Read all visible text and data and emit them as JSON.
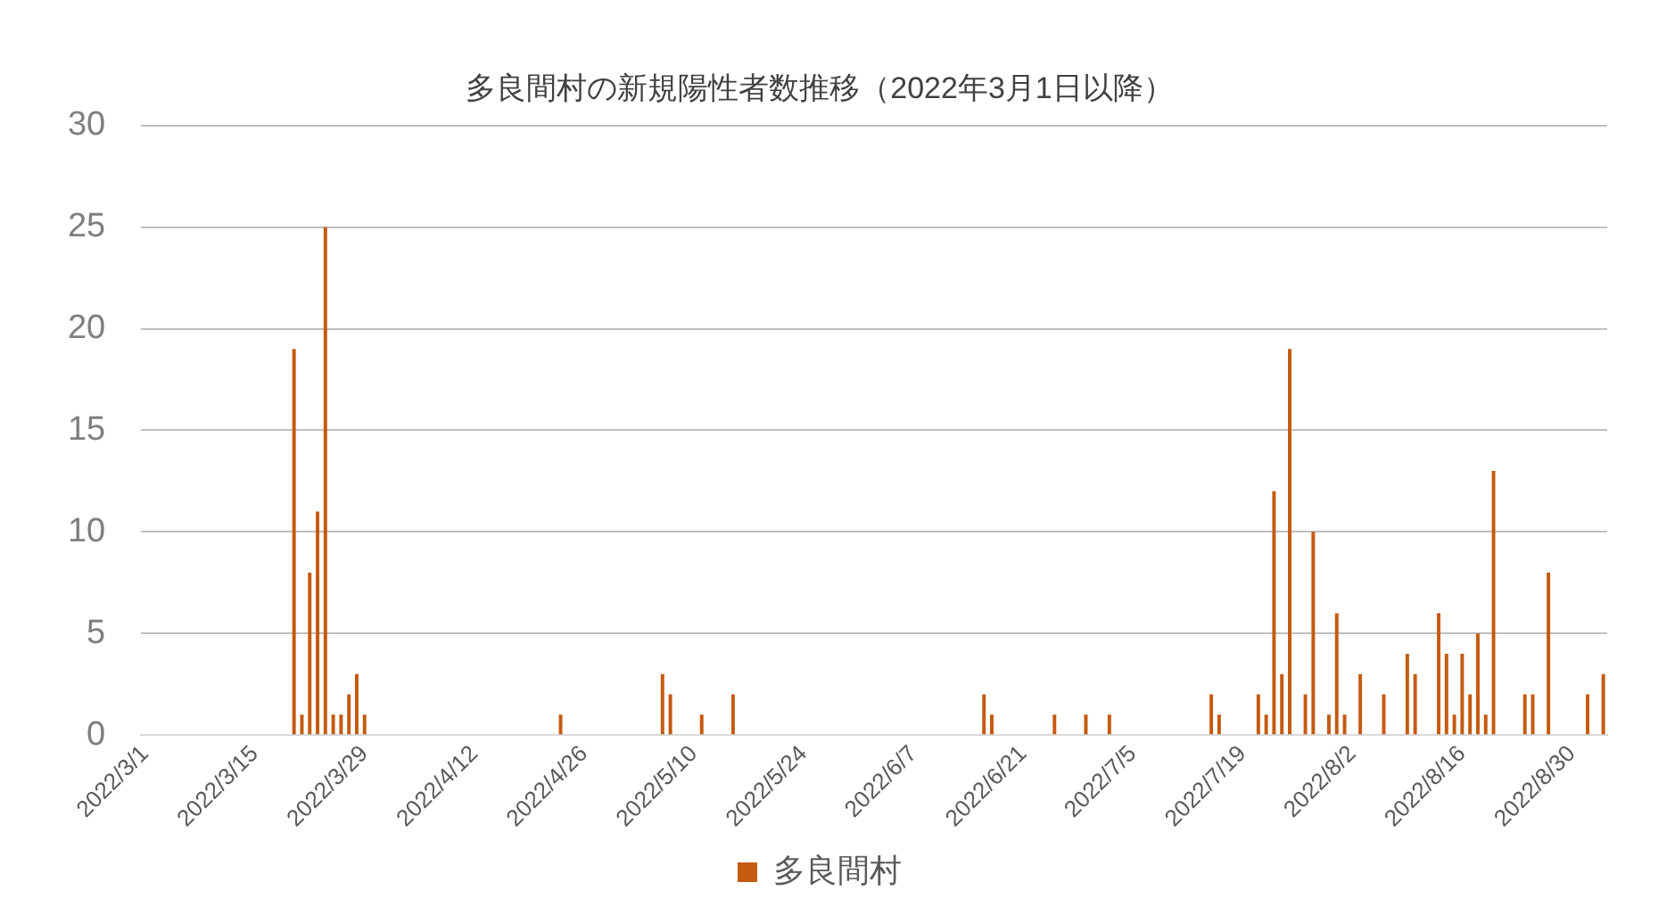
{
  "chart_data": {
    "type": "bar",
    "title": "多良間村の新規陽性者数推移（2022年3月1日以降）",
    "categories": [
      "2022/3/1",
      null,
      null,
      null,
      null,
      null,
      null,
      null,
      null,
      null,
      null,
      null,
      null,
      null,
      "2022/3/15",
      null,
      null,
      null,
      null,
      null,
      null,
      null,
      null,
      null,
      null,
      null,
      null,
      null,
      "2022/3/29",
      null,
      null,
      null,
      null,
      null,
      null,
      null,
      null,
      null,
      null,
      null,
      null,
      null,
      "2022/4/12",
      null,
      null,
      null,
      null,
      null,
      null,
      null,
      null,
      null,
      null,
      null,
      null,
      null,
      "2022/4/26",
      null,
      null,
      null,
      null,
      null,
      null,
      null,
      null,
      null,
      null,
      null,
      null,
      null,
      "2022/5/10",
      null,
      null,
      null,
      null,
      null,
      null,
      null,
      null,
      null,
      null,
      null,
      null,
      null,
      "2022/5/24",
      null,
      null,
      null,
      null,
      null,
      null,
      null,
      null,
      null,
      null,
      null,
      null,
      null,
      "2022/6/7",
      null,
      null,
      null,
      null,
      null,
      null,
      null,
      null,
      null,
      null,
      null,
      null,
      null,
      "2022/6/21",
      null,
      null,
      null,
      null,
      null,
      null,
      null,
      null,
      null,
      null,
      null,
      null,
      null,
      "2022/7/5",
      null,
      null,
      null,
      null,
      null,
      null,
      null,
      null,
      null,
      null,
      null,
      null,
      null,
      "2022/7/19",
      null,
      null,
      null,
      null,
      null,
      null,
      null,
      null,
      null,
      null,
      null,
      null,
      null,
      "2022/8/2",
      null,
      null,
      null,
      null,
      null,
      null,
      null,
      null,
      null,
      null,
      null,
      null,
      null,
      "2022/8/16",
      null,
      null,
      null,
      null,
      null,
      null,
      null,
      null,
      null,
      null,
      null,
      null,
      null,
      "2022/8/30",
      null,
      null,
      null,
      null
    ],
    "series": [
      {
        "name": "多良間村",
        "color": "#c55a11",
        "values": [
          0,
          0,
          0,
          0,
          0,
          0,
          0,
          0,
          0,
          0,
          0,
          0,
          0,
          0,
          0,
          0,
          0,
          0,
          0,
          19,
          1,
          8,
          11,
          25,
          1,
          1,
          2,
          3,
          1,
          0,
          0,
          0,
          0,
          0,
          0,
          0,
          0,
          0,
          0,
          0,
          0,
          0,
          0,
          0,
          0,
          0,
          0,
          0,
          0,
          0,
          0,
          0,
          0,
          1,
          0,
          0,
          0,
          0,
          0,
          0,
          0,
          0,
          0,
          0,
          0,
          0,
          3,
          2,
          0,
          0,
          0,
          1,
          0,
          0,
          0,
          2,
          0,
          0,
          0,
          0,
          0,
          0,
          0,
          0,
          0,
          0,
          0,
          0,
          0,
          0,
          0,
          0,
          0,
          0,
          0,
          0,
          0,
          0,
          0,
          0,
          0,
          0,
          0,
          0,
          0,
          0,
          0,
          2,
          1,
          0,
          0,
          0,
          0,
          0,
          0,
          0,
          1,
          0,
          0,
          0,
          1,
          0,
          0,
          1,
          0,
          0,
          0,
          0,
          0,
          0,
          0,
          0,
          0,
          0,
          0,
          0,
          2,
          1,
          0,
          0,
          0,
          0,
          2,
          1,
          12,
          3,
          19,
          0,
          2,
          10,
          0,
          1,
          6,
          1,
          0,
          3,
          0,
          0,
          2,
          0,
          0,
          4,
          3,
          0,
          0,
          6,
          4,
          1,
          4,
          2,
          5,
          1,
          13,
          0,
          0,
          0,
          2,
          2,
          0,
          8,
          0,
          0,
          0,
          0,
          2,
          0,
          3
        ]
      }
    ],
    "ylim": [
      0,
      30
    ],
    "yticks": [
      0,
      5,
      10,
      15,
      20,
      25,
      30
    ],
    "grid": "y",
    "legend": "bottom"
  }
}
